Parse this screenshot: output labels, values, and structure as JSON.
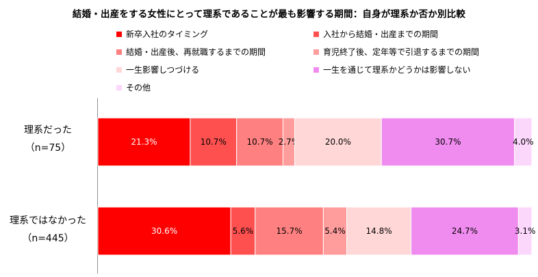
{
  "title": "結婚・出産をする女性にとって理系であることが最も影響する期間：自身が理系か否か別比較",
  "chart_data": {
    "type": "bar",
    "orientation": "horizontal",
    "stacked": "100%",
    "legend_position": "top",
    "series": [
      {
        "name": "新卒入社のタイミング",
        "color": "#ff0000",
        "text_color": "#ffffff"
      },
      {
        "name": "入社から結婚・出産までの期間",
        "color": "#ff5050",
        "text_color": "#000000"
      },
      {
        "name": "結婚・出産後、再就職するまでの期間",
        "color": "#ff8080",
        "text_color": "#000000"
      },
      {
        "name": "育児終了後、定年等で引退するまでの期間",
        "color": "#ff9d9d",
        "text_color": "#000000"
      },
      {
        "name": "一生影響しつづける",
        "color": "#ffd7d7",
        "text_color": "#000000"
      },
      {
        "name": "一生を通じて理系かどうかは影響しない",
        "color": "#f08cf0",
        "text_color": "#000000"
      },
      {
        "name": "その他",
        "color": "#fcd7fc",
        "text_color": "#000000"
      }
    ],
    "rows": [
      {
        "label": "理系だった",
        "n": "（n=75）",
        "values": [
          21.3,
          10.7,
          10.7,
          2.7,
          20.0,
          30.7,
          4.0
        ],
        "labels": [
          "21.3%",
          "10.7%",
          "10.7%",
          "2.7%",
          "20.0%",
          "30.7%",
          "4.0%"
        ]
      },
      {
        "label": "理系ではなかった",
        "n": "（n=445）",
        "values": [
          30.6,
          5.6,
          15.7,
          5.4,
          14.8,
          24.7,
          3.1
        ],
        "labels": [
          "30.6%",
          "5.6%",
          "15.7%",
          "5.4%",
          "14.8%",
          "24.7%",
          "3.1%"
        ]
      }
    ]
  }
}
